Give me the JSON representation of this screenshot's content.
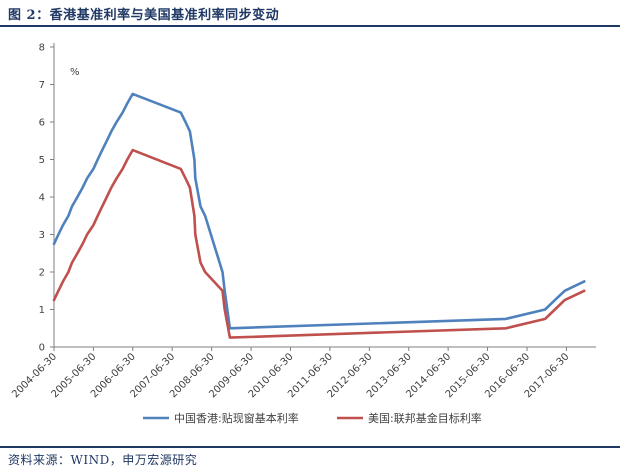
{
  "header": {
    "title": "图 2：香港基准利率与美国基准利率同步变动"
  },
  "footer": {
    "source": "资料来源：WIND，申万宏源研究"
  },
  "chart_data": {
    "type": "line",
    "title": "",
    "xlabel": "",
    "ylabel": "%",
    "ylim": [
      0,
      8
    ],
    "yticks": [
      "0",
      "1",
      "2",
      "3",
      "4",
      "5",
      "6",
      "7",
      "8"
    ],
    "xlim": [
      "2004-06-30",
      "2018-03-31"
    ],
    "xticks": [
      "2004-06-30",
      "2005-06-30",
      "2006-06-30",
      "2007-06-30",
      "2008-06-30",
      "2009-06-30",
      "2010-06-30",
      "2011-06-30",
      "2012-06-30",
      "2013-06-30",
      "2014-06-30",
      "2015-06-30",
      "2016-06-30",
      "2017-06-30"
    ],
    "grid": false,
    "legend": "bottom",
    "series": [
      {
        "name": "中国香港:贴现窗基本利率",
        "color": "#4f81bd",
        "points": [
          [
            "2004-06-30",
            2.75
          ],
          [
            "2004-08-10",
            3.0
          ],
          [
            "2004-09-21",
            3.25
          ],
          [
            "2004-11-10",
            3.5
          ],
          [
            "2004-12-14",
            3.75
          ],
          [
            "2005-02-02",
            4.0
          ],
          [
            "2005-03-22",
            4.25
          ],
          [
            "2005-05-03",
            4.5
          ],
          [
            "2005-06-30",
            4.75
          ],
          [
            "2005-08-09",
            5.0
          ],
          [
            "2005-09-20",
            5.25
          ],
          [
            "2005-11-01",
            5.5
          ],
          [
            "2005-12-13",
            5.75
          ],
          [
            "2006-01-31",
            6.0
          ],
          [
            "2006-03-28",
            6.25
          ],
          [
            "2006-05-10",
            6.5
          ],
          [
            "2006-06-29",
            6.75
          ],
          [
            "2007-09-18",
            6.25
          ],
          [
            "2007-10-31",
            6.0
          ],
          [
            "2007-12-11",
            5.75
          ],
          [
            "2008-01-22",
            5.0
          ],
          [
            "2008-01-30",
            4.5
          ],
          [
            "2008-03-18",
            3.75
          ],
          [
            "2008-04-30",
            3.5
          ],
          [
            "2008-10-08",
            2.0
          ],
          [
            "2008-10-29",
            1.5
          ],
          [
            "2008-12-16",
            0.5
          ],
          [
            "2015-12-16",
            0.75
          ],
          [
            "2016-12-14",
            1.0
          ],
          [
            "2017-03-15",
            1.25
          ],
          [
            "2017-06-14",
            1.5
          ],
          [
            "2017-12-13",
            1.75
          ]
        ]
      },
      {
        "name": "美国:联邦基金目标利率",
        "color": "#c0504d",
        "points": [
          [
            "2004-06-30",
            1.25
          ],
          [
            "2004-08-10",
            1.5
          ],
          [
            "2004-09-21",
            1.75
          ],
          [
            "2004-11-10",
            2.0
          ],
          [
            "2004-12-14",
            2.25
          ],
          [
            "2005-02-02",
            2.5
          ],
          [
            "2005-03-22",
            2.75
          ],
          [
            "2005-05-03",
            3.0
          ],
          [
            "2005-06-30",
            3.25
          ],
          [
            "2005-08-09",
            3.5
          ],
          [
            "2005-09-20",
            3.75
          ],
          [
            "2005-11-01",
            4.0
          ],
          [
            "2005-12-13",
            4.25
          ],
          [
            "2006-01-31",
            4.5
          ],
          [
            "2006-03-28",
            4.75
          ],
          [
            "2006-05-10",
            5.0
          ],
          [
            "2006-06-29",
            5.25
          ],
          [
            "2007-09-18",
            4.75
          ],
          [
            "2007-10-31",
            4.5
          ],
          [
            "2007-12-11",
            4.25
          ],
          [
            "2008-01-22",
            3.5
          ],
          [
            "2008-01-30",
            3.0
          ],
          [
            "2008-03-18",
            2.25
          ],
          [
            "2008-04-30",
            2.0
          ],
          [
            "2008-10-08",
            1.5
          ],
          [
            "2008-10-29",
            1.0
          ],
          [
            "2008-12-16",
            0.25
          ],
          [
            "2015-12-16",
            0.5
          ],
          [
            "2016-12-14",
            0.75
          ],
          [
            "2017-03-15",
            1.0
          ],
          [
            "2017-06-14",
            1.25
          ],
          [
            "2017-12-13",
            1.5
          ]
        ]
      }
    ]
  }
}
